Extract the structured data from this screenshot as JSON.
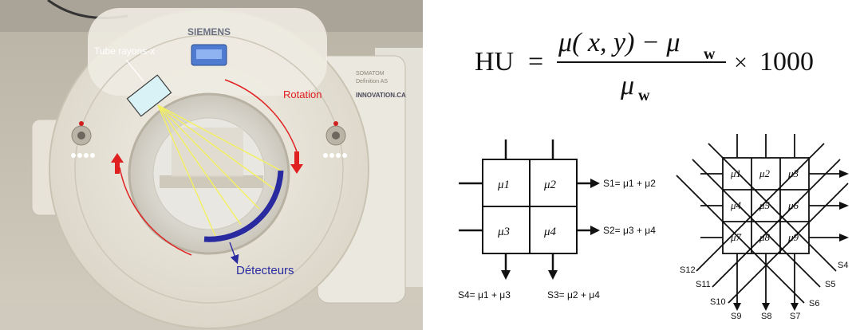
{
  "photo": {
    "brand": "SIEMENS",
    "model_line1": "SOMATOM",
    "model_line2": "Definition AS",
    "sticker": "INNOVATION.CA",
    "labels": {
      "tube": "Tube rayons-x",
      "rotation": "Rotation",
      "detectors": "Détecteurs"
    },
    "colors": {
      "rotation_arrow": "#e02020",
      "detector_arc": "#2a2aa0",
      "beam": "#f4f060",
      "tube_fill": "#d8f2f6",
      "label_white": "#ffffff"
    }
  },
  "formula": {
    "lhs": "HU",
    "eq": "=",
    "numerator": "μ( x, y) − μ",
    "numerator_sub": "w",
    "denominator": "μ",
    "denominator_sub": "w",
    "times": "×",
    "factor": "1000"
  },
  "grid2": {
    "cells": [
      "μ1",
      "μ2",
      "μ3",
      "μ4"
    ],
    "sums": {
      "s1": "S1= μ1 + μ2",
      "s2": "S2= μ3 + μ4",
      "s4": "S4= μ1 + μ3",
      "s3": "S3= μ2 + μ4"
    }
  },
  "grid3": {
    "cells": [
      "μ1",
      "μ2",
      "μ3",
      "μ4",
      "μ5",
      "μ6",
      "μ7",
      "μ8",
      "μ9"
    ],
    "rays": [
      "S12",
      "S11",
      "S10",
      "S9",
      "S8",
      "S7",
      "S6",
      "S5",
      "S4"
    ]
  }
}
